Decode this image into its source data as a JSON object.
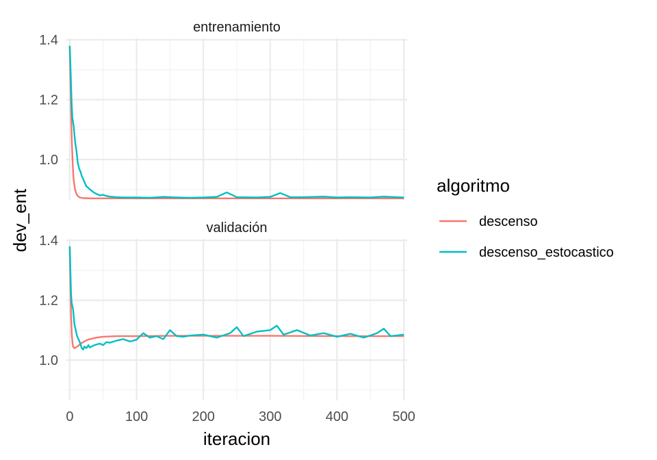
{
  "chart_data": {
    "type": "line",
    "xlabel": "iteracion",
    "ylabel": "dev_ent",
    "xlim": [
      -5,
      505
    ],
    "x_ticks": [
      0,
      100,
      200,
      300,
      400,
      500
    ],
    "x_tick_labels": [
      "0",
      "100",
      "200",
      "300",
      "400",
      "500"
    ],
    "legend": {
      "title": "algoritmo",
      "position": "right",
      "entries": [
        {
          "name": "descenso",
          "color": "#F8766D"
        },
        {
          "name": "descenso_estocastico",
          "color": "#00BFC4"
        }
      ]
    },
    "grid": true,
    "panels": [
      {
        "title": "entrenamiento",
        "ylim": [
          0.865,
          1.405
        ],
        "y_ticks": [
          1.0,
          1.2,
          1.4
        ],
        "y_tick_labels": [
          "1.0",
          "1.2",
          "1.4"
        ],
        "series": [
          {
            "name": "descenso",
            "color": "#F8766D",
            "x": [
              0,
              1,
              2,
              3,
              4,
              5,
              6,
              8,
              10,
              12,
              15,
              20,
              30,
              50,
              100,
              200,
              300,
              400,
              500
            ],
            "y": [
              1.38,
              1.27,
              1.16,
              1.07,
              1.01,
              0.96,
              0.93,
              0.9,
              0.885,
              0.878,
              0.873,
              0.871,
              0.87,
              0.87,
              0.87,
              0.87,
              0.87,
              0.87,
              0.87
            ]
          },
          {
            "name": "descenso_estocastico",
            "color": "#00BFC4",
            "x": [
              0,
              1,
              2,
              3,
              4,
              6,
              8,
              10,
              12,
              14,
              16,
              18,
              20,
              22,
              25,
              28,
              30,
              33,
              36,
              40,
              45,
              50,
              55,
              60,
              70,
              80,
              100,
              120,
              140,
              160,
              180,
              200,
              220,
              235,
              250,
              280,
              300,
              315,
              330,
              350,
              380,
              400,
              420,
              450,
              470,
              490,
              500
            ],
            "y": [
              1.38,
              1.32,
              1.25,
              1.18,
              1.14,
              1.11,
              1.06,
              1.03,
              0.99,
              0.97,
              0.96,
              0.945,
              0.935,
              0.925,
              0.91,
              0.905,
              0.9,
              0.895,
              0.89,
              0.885,
              0.88,
              0.882,
              0.878,
              0.876,
              0.874,
              0.873,
              0.873,
              0.872,
              0.875,
              0.873,
              0.872,
              0.873,
              0.875,
              0.89,
              0.874,
              0.873,
              0.875,
              0.888,
              0.874,
              0.874,
              0.876,
              0.873,
              0.874,
              0.873,
              0.876,
              0.874,
              0.873
            ]
          }
        ]
      },
      {
        "title": "validación",
        "ylim": [
          0.865,
          1.405
        ],
        "y_ticks": [
          1.0,
          1.2,
          1.4
        ],
        "y_tick_labels": [
          "1.0",
          "1.2",
          "1.4"
        ],
        "series": [
          {
            "name": "descenso",
            "color": "#F8766D",
            "x": [
              0,
              1,
              2,
              3,
              4,
              5,
              7,
              9,
              12,
              15,
              20,
              25,
              30,
              40,
              50,
              70,
              100,
              150,
              200,
              300,
              400,
              500
            ],
            "y": [
              1.38,
              1.25,
              1.15,
              1.09,
              1.06,
              1.045,
              1.04,
              1.042,
              1.046,
              1.052,
              1.06,
              1.066,
              1.07,
              1.075,
              1.078,
              1.08,
              1.08,
              1.081,
              1.081,
              1.081,
              1.08,
              1.08
            ]
          },
          {
            "name": "descenso_estocastico",
            "color": "#00BFC4",
            "x": [
              0,
              1,
              2,
              3,
              5,
              7,
              9,
              11,
              13,
              15,
              18,
              20,
              22,
              25,
              28,
              30,
              35,
              40,
              45,
              50,
              55,
              60,
              70,
              80,
              90,
              100,
              110,
              120,
              130,
              140,
              150,
              160,
              170,
              180,
              200,
              220,
              240,
              250,
              260,
              280,
              300,
              310,
              320,
              340,
              360,
              380,
              400,
              420,
              440,
              460,
              470,
              480,
              500
            ],
            "y": [
              1.38,
              1.3,
              1.22,
              1.19,
              1.17,
              1.12,
              1.1,
              1.08,
              1.07,
              1.06,
              1.04,
              1.035,
              1.045,
              1.04,
              1.05,
              1.042,
              1.048,
              1.052,
              1.055,
              1.05,
              1.06,
              1.058,
              1.065,
              1.07,
              1.062,
              1.068,
              1.09,
              1.075,
              1.08,
              1.07,
              1.1,
              1.08,
              1.078,
              1.082,
              1.085,
              1.075,
              1.09,
              1.11,
              1.08,
              1.095,
              1.1,
              1.115,
              1.085,
              1.1,
              1.082,
              1.09,
              1.078,
              1.088,
              1.075,
              1.09,
              1.105,
              1.08,
              1.085
            ]
          }
        ]
      }
    ]
  }
}
